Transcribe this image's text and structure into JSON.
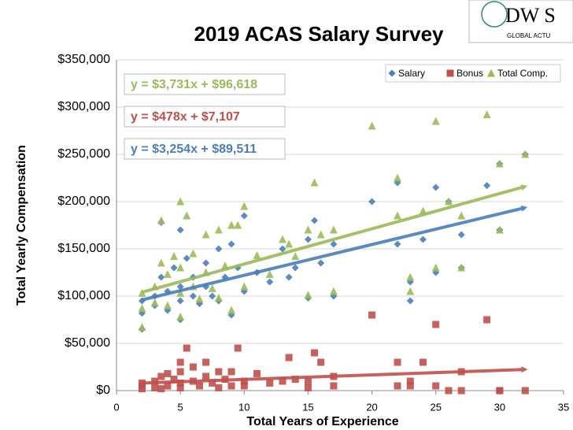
{
  "chart_data": {
    "type": "scatter",
    "title": "2019 ACAS Salary Survey",
    "logo": {
      "text": "DW S",
      "subtext": "GLOBAL ACTU"
    },
    "x_label": "Total Years of Experience",
    "y_label": "Total Yearly Compensation",
    "xlim": [
      0,
      35
    ],
    "xticks": [
      0,
      5,
      10,
      15,
      20,
      25,
      30,
      35
    ],
    "ylim": [
      0,
      350000
    ],
    "yticks": [
      {
        "value": 0,
        "label": "$0"
      },
      {
        "value": 50000,
        "label": "$50,000"
      },
      {
        "value": 100000,
        "label": "$100,000"
      },
      {
        "value": 150000,
        "label": "$150,000"
      },
      {
        "value": 200000,
        "label": "$200,000"
      },
      {
        "value": 250000,
        "label": "$250,000"
      },
      {
        "value": 300000,
        "label": "$300,000"
      },
      {
        "value": 350000,
        "label": "$350,000"
      }
    ],
    "grid": true,
    "legend": "top-right",
    "x": [
      2,
      2,
      2,
      3,
      3,
      3.5,
      3.5,
      4,
      4,
      4.5,
      5,
      5,
      5,
      5,
      5.5,
      6,
      6,
      6.5,
      7,
      7,
      7.5,
      8,
      8,
      8.5,
      9,
      9,
      9.5,
      10,
      10,
      11,
      12,
      13,
      13.5,
      14,
      15,
      15,
      15.5,
      16,
      17,
      17,
      20,
      22,
      22,
      23,
      23,
      24,
      25,
      25,
      26,
      27,
      27,
      29,
      30,
      30,
      32
    ],
    "series": [
      {
        "name": "Salary",
        "color": "#4a7ebb",
        "marker": "diamond",
        "values": [
          82000,
          95000,
          65000,
          100000,
          90000,
          120000,
          178000,
          105000,
          85000,
          130000,
          170000,
          110000,
          95000,
          75000,
          140000,
          120000,
          100000,
          92000,
          135000,
          110000,
          100000,
          150000,
          95000,
          120000,
          80000,
          155000,
          130000,
          185000,
          105000,
          125000,
          115000,
          150000,
          120000,
          130000,
          98000,
          160000,
          180000,
          135000,
          100000,
          155000,
          200000,
          220000,
          155000,
          95000,
          115000,
          160000,
          215000,
          125000,
          200000,
          165000,
          130000,
          217000,
          240000,
          170000,
          250000
        ],
        "trendline": {
          "label": "y = $3,254x + $89,511",
          "slope": 3254,
          "intercept": 89511
        }
      },
      {
        "name": "Bonus",
        "color": "#c0504d",
        "marker": "square",
        "values": [
          5000,
          8000,
          2000,
          10000,
          3000,
          15000,
          2000,
          18000,
          5000,
          12000,
          30000,
          20000,
          8000,
          3000,
          45000,
          25000,
          10000,
          5000,
          30000,
          15000,
          8000,
          20000,
          3000,
          12000,
          5000,
          20000,
          45000,
          10000,
          5000,
          18000,
          8000,
          10000,
          35000,
          12000,
          3000,
          10000,
          40000,
          30000,
          5000,
          15000,
          80000,
          5000,
          30000,
          10000,
          5000,
          30000,
          70000,
          5000,
          0,
          20000,
          0,
          75000,
          0,
          0,
          0
        ],
        "trendline": {
          "label": "y = $478x + $7,107",
          "slope": 478,
          "intercept": 7107
        }
      },
      {
        "name": "Total Comp.",
        "color": "#9bbb59",
        "marker": "triangle",
        "values": [
          87000,
          103000,
          67000,
          110000,
          93000,
          135000,
          180000,
          123000,
          90000,
          142000,
          200000,
          130000,
          103000,
          78000,
          185000,
          145000,
          110000,
          97000,
          165000,
          125000,
          108000,
          170000,
          98000,
          132000,
          85000,
          175000,
          175000,
          195000,
          110000,
          143000,
          123000,
          160000,
          155000,
          142000,
          101000,
          170000,
          220000,
          165000,
          105000,
          170000,
          280000,
          225000,
          185000,
          105000,
          120000,
          190000,
          285000,
          130000,
          200000,
          185000,
          130000,
          292000,
          240000,
          170000,
          250000
        ],
        "trendline": {
          "label": "y = $3,731x + $96,618",
          "slope": 3731,
          "intercept": 96618
        }
      }
    ]
  }
}
